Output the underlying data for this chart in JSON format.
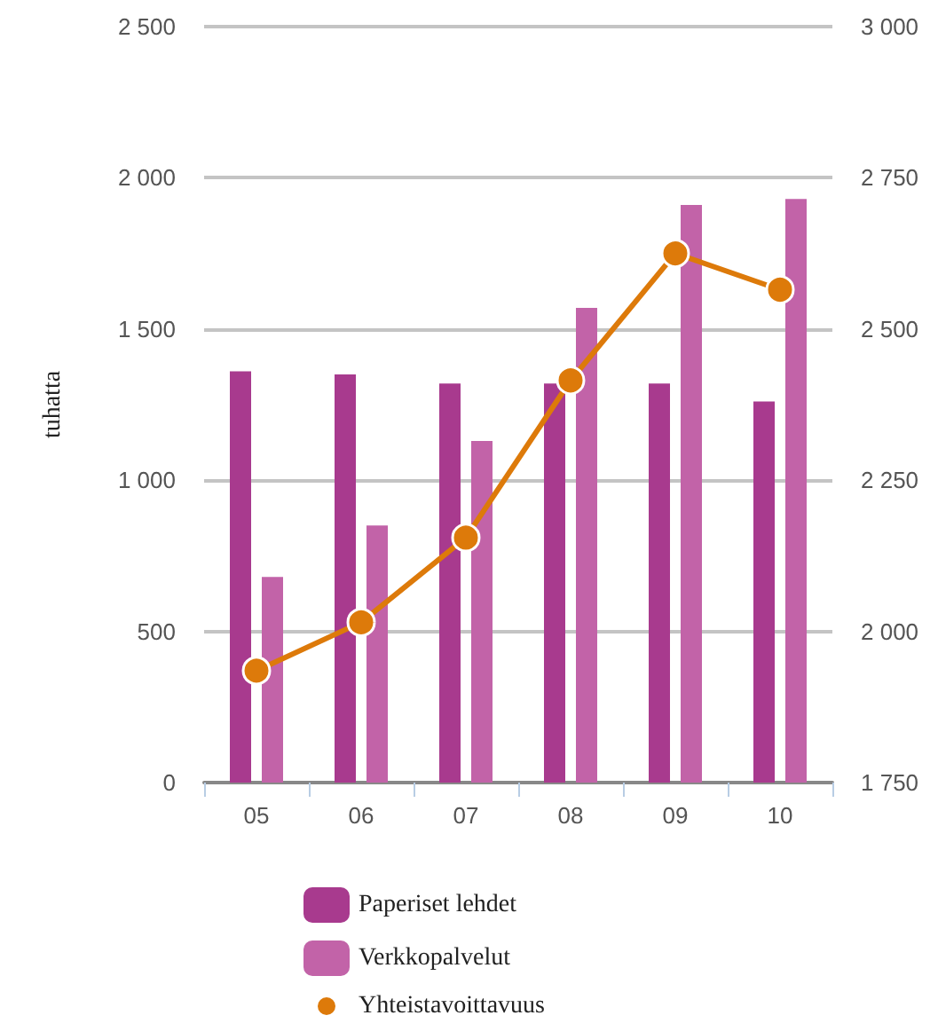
{
  "chart_data": {
    "type": "bar",
    "ylabel": "tuhatta",
    "categories": [
      "05",
      "06",
      "07",
      "08",
      "09",
      "10"
    ],
    "series": [
      {
        "name": "Paperiset lehdet",
        "color": "#a83a8e",
        "values": [
          1360,
          1350,
          1320,
          1320,
          1320,
          1260
        ]
      },
      {
        "name": "Verkkopalvelut",
        "color": "#c263a8",
        "values": [
          680,
          850,
          1130,
          1570,
          1910,
          1930
        ]
      },
      {
        "name": "Yhteistavoittavuus",
        "type": "line",
        "axis": "y2",
        "color": "#dd7a0a",
        "marker": "circle",
        "values": [
          1935,
          2015,
          2155,
          2415,
          2625,
          2565
        ]
      }
    ],
    "ylim": [
      0,
      2500
    ],
    "yticks": [
      0,
      500,
      {
        "value": 1000,
        "label": "1 000"
      },
      {
        "value": 1500,
        "label": "1 500"
      },
      {
        "value": 2000,
        "label": "2 000"
      },
      {
        "value": 2500,
        "label": "2 500"
      }
    ],
    "y2lim": [
      1750,
      3000
    ],
    "y2ticks": [
      {
        "value": 1750,
        "label": "1 750"
      },
      {
        "value": 2000,
        "label": "2 000"
      },
      {
        "value": 2250,
        "label": "2 250"
      },
      {
        "value": 2500,
        "label": "2 500"
      },
      {
        "value": 2750,
        "label": "2 750"
      },
      {
        "value": 3000,
        "label": "3 000"
      }
    ],
    "grid": "y",
    "legend": "bottom"
  }
}
